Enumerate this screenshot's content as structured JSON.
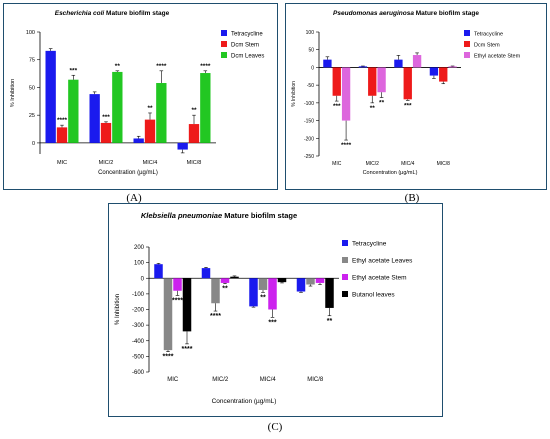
{
  "chart_data": [
    {
      "type": "bar",
      "title": "Escherichia coli Mature biofilm stage",
      "title_italic_part": "Escherichia coli",
      "title_plain_part": " Mature biofilm stage",
      "xlabel": "Concentration (µg/mL)",
      "ylabel": "% Inhibition",
      "categories": [
        "MIC",
        "MIC/2",
        "MIC/4",
        "MIC/8"
      ],
      "ylim": [
        -10,
        100
      ],
      "yticks": [
        0,
        25,
        50,
        75,
        100
      ],
      "ytick_labels": [
        "0",
        "25",
        "50",
        "75",
        "100"
      ],
      "legend_position": "top-right",
      "grid": false,
      "series": [
        {
          "name": "Tetracycline",
          "color": "#1a1aee",
          "values": [
            83,
            44,
            4,
            -6
          ],
          "errors": [
            2,
            2,
            2,
            3
          ],
          "significance": [
            "",
            "",
            "",
            ""
          ]
        },
        {
          "name": "Dcm Stem",
          "color": "#ee1a1a",
          "values": [
            14,
            18,
            21,
            17
          ],
          "errors": [
            2,
            1,
            6,
            8
          ],
          "significance": [
            "****",
            "***",
            "**",
            "**"
          ]
        },
        {
          "name": "Dcm Leaves",
          "color": "#22c722",
          "values": [
            57,
            64,
            54,
            63
          ],
          "errors": [
            4,
            1,
            11,
            2
          ],
          "significance": [
            "***",
            "**",
            "****",
            "****"
          ]
        }
      ]
    },
    {
      "type": "bar",
      "title": "Pseudomonas aeruginosa Mature biofilm stage",
      "title_italic_part": "Pseudomonas aeruginosa",
      "title_plain_part": " Mature biofilm stage",
      "xlabel": "Concentration (µg/mL)",
      "ylabel": "% Inhibition",
      "categories": [
        "MIC",
        "MIC/2",
        "MIC/4",
        "MIC/8"
      ],
      "ylim": [
        -250,
        100
      ],
      "yticks": [
        -250,
        -200,
        -150,
        -100,
        -50,
        0,
        50,
        100
      ],
      "ytick_labels": [
        "-250",
        "-200",
        "-150",
        "-100",
        "-50",
        "0",
        "50",
        "100"
      ],
      "legend_position": "top-right",
      "grid": false,
      "series": [
        {
          "name": "Tetracycline",
          "color": "#1a1aee",
          "values": [
            22,
            3,
            22,
            -23
          ],
          "errors": [
            8,
            1,
            12,
            8
          ],
          "significance": [
            "",
            "",
            "",
            ""
          ]
        },
        {
          "name": "Dcm Stem",
          "color": "#ee1a1a",
          "values": [
            -80,
            -80,
            -90,
            -40
          ],
          "errors": [
            15,
            20,
            3,
            6
          ],
          "significance": [
            "***",
            "**",
            "***",
            ""
          ]
        },
        {
          "name": "Ethyl acetate Stem",
          "color": "#dd66dd",
          "values": [
            -150,
            -70,
            35,
            3
          ],
          "errors": [
            55,
            15,
            6,
            1
          ],
          "significance": [
            "****",
            "**",
            "",
            ""
          ]
        }
      ]
    },
    {
      "type": "bar",
      "title": "Klebsiella pneumoniae Mature biofilm stage",
      "title_italic_part": "Klebsiella pneumoniae",
      "title_plain_part": " Mature biofilm stage",
      "xlabel": "Concentration (µg/mL)",
      "ylabel": "% Inhibition",
      "categories": [
        "MIC",
        "MIC/2",
        "MIC/4",
        "MIC/8"
      ],
      "ylim": [
        -600,
        200
      ],
      "yticks": [
        -600,
        -500,
        -400,
        -300,
        -200,
        -100,
        0,
        100,
        200
      ],
      "ytick_labels": [
        "-600",
        "-500",
        "-400",
        "-300",
        "-200",
        "-100",
        "0",
        "100",
        "200"
      ],
      "legend_position": "top-right",
      "grid": false,
      "series": [
        {
          "name": "Tetracycline",
          "color": "#1a1aee",
          "values": [
            90,
            65,
            -180,
            -85
          ],
          "errors": [
            5,
            5,
            5,
            5
          ],
          "significance": [
            "",
            "",
            "",
            ""
          ]
        },
        {
          "name": "Ethyl acetate Leaves",
          "color": "#888888",
          "values": [
            -460,
            -160,
            -75,
            -40
          ],
          "errors": [
            10,
            50,
            15,
            10
          ],
          "significance": [
            "****",
            "****",
            "**",
            ""
          ]
        },
        {
          "name": "Ethyl acetate Stem",
          "color": "#cc22ee",
          "values": [
            -80,
            -30,
            -200,
            -30
          ],
          "errors": [
            30,
            5,
            50,
            10
          ],
          "significance": [
            "****",
            "**",
            "***",
            ""
          ]
        },
        {
          "name": "Butanol leaves",
          "color": "#000000",
          "values": [
            -340,
            10,
            -25,
            -190
          ],
          "errors": [
            80,
            5,
            5,
            50
          ],
          "significance": [
            "****",
            "",
            "",
            "**"
          ]
        }
      ]
    }
  ],
  "panel_letters": [
    "(A)",
    "(B)",
    "(C)"
  ]
}
